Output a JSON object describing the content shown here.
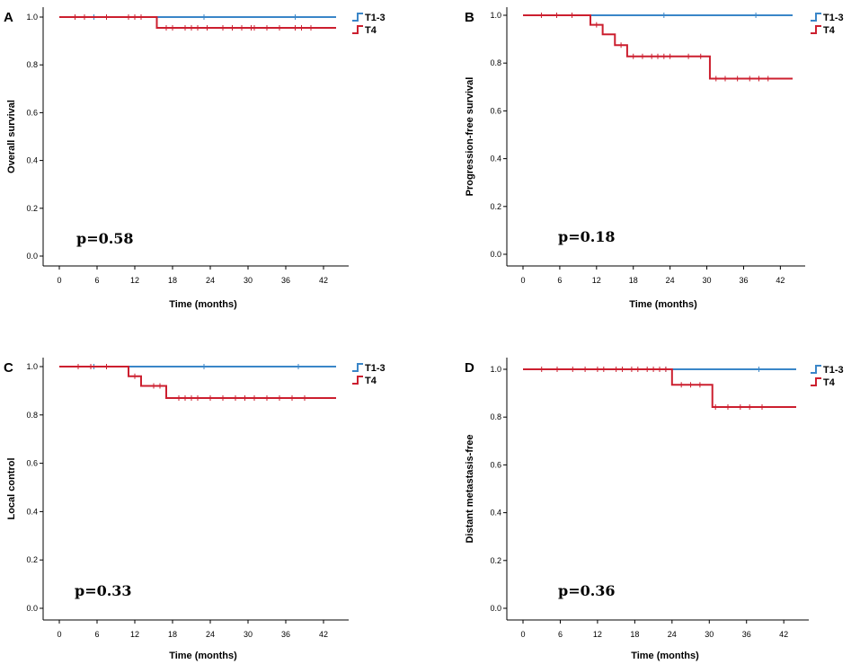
{
  "chart_data": [
    {
      "type": "line",
      "panel": "A",
      "xlabel": "Time (months)",
      "ylabel": "Overall survival",
      "xlim": [
        0,
        44
      ],
      "ylim": [
        0,
        1.0
      ],
      "xticks": [
        0,
        6,
        12,
        18,
        24,
        30,
        36,
        42
      ],
      "yticks": [
        "0.0",
        "0.2",
        "0.4",
        "0.6",
        "0.8",
        "1.0"
      ],
      "pvalue": "p=0.58",
      "legend": [
        "T1-3",
        "T4"
      ],
      "series": [
        {
          "name": "T1-3",
          "color": "#3a86c8",
          "steps": [
            [
              0,
              1.0
            ],
            [
              44,
              1.0
            ]
          ],
          "censor": [
            5.5,
            23,
            37.5
          ]
        },
        {
          "name": "T4",
          "color": "#cc1f2f",
          "steps": [
            [
              0,
              1.0
            ],
            [
              15.5,
              0.955
            ],
            [
              44,
              0.955
            ]
          ],
          "censor": [
            2.5,
            4,
            7.5,
            11,
            12,
            13,
            17,
            18,
            20,
            21,
            22,
            23.5,
            26,
            27.5,
            29,
            30.5,
            31,
            33,
            35,
            37.5,
            38.5,
            40
          ]
        }
      ]
    },
    {
      "type": "line",
      "panel": "B",
      "xlabel": "Time (months)",
      "ylabel": "Progression-free survival",
      "xlim": [
        0,
        44
      ],
      "ylim": [
        0,
        1.0
      ],
      "xticks": [
        0,
        6,
        12,
        18,
        24,
        30,
        36,
        42
      ],
      "yticks": [
        "0.0",
        "0.2",
        "0.4",
        "0.6",
        "0.8",
        "1.0"
      ],
      "pvalue": "p=0.18",
      "legend": [
        "T1-3",
        "T4"
      ],
      "series": [
        {
          "name": "T1-3",
          "color": "#3a86c8",
          "steps": [
            [
              0,
              1.0
            ],
            [
              44,
              1.0
            ]
          ],
          "censor": [
            5.5,
            23,
            38
          ]
        },
        {
          "name": "T4",
          "color": "#cc1f2f",
          "steps": [
            [
              0,
              1.0
            ],
            [
              11,
              0.96
            ],
            [
              13,
              0.92
            ],
            [
              15,
              0.875
            ],
            [
              17,
              0.828
            ],
            [
              30.5,
              0.735
            ],
            [
              44,
              0.735
            ]
          ],
          "censor": [
            3,
            5.5,
            8,
            12,
            16,
            18,
            19.5,
            21,
            22,
            23,
            24,
            27,
            29,
            31.5,
            33,
            35,
            37,
            38.5,
            40
          ]
        }
      ]
    },
    {
      "type": "line",
      "panel": "C",
      "xlabel": "Time (months)",
      "ylabel": "Local control",
      "xlim": [
        0,
        44
      ],
      "ylim": [
        0,
        1.0
      ],
      "xticks": [
        0,
        6,
        12,
        18,
        24,
        30,
        36,
        42
      ],
      "yticks": [
        "0.0",
        "0.2",
        "0.4",
        "0.6",
        "0.8",
        "1.0"
      ],
      "pvalue": "p=0.33",
      "legend": [
        "T1-3",
        "T4"
      ],
      "series": [
        {
          "name": "T1-3",
          "color": "#3a86c8",
          "steps": [
            [
              0,
              1.0
            ],
            [
              44,
              1.0
            ]
          ],
          "censor": [
            5.5,
            23,
            38
          ]
        },
        {
          "name": "T4",
          "color": "#cc1f2f",
          "steps": [
            [
              0,
              1.0
            ],
            [
              11,
              0.96
            ],
            [
              13,
              0.92
            ],
            [
              17,
              0.87
            ],
            [
              44,
              0.87
            ]
          ],
          "censor": [
            3,
            5,
            7.5,
            12,
            15,
            16,
            19,
            20,
            21,
            22,
            24,
            26,
            28,
            29.5,
            31,
            33,
            35,
            37,
            39
          ]
        }
      ]
    },
    {
      "type": "line",
      "panel": "D",
      "xlabel": "Time (months)",
      "ylabel": "Distant metastasis-free",
      "xlim": [
        0,
        44
      ],
      "ylim": [
        0,
        1.0
      ],
      "xticks": [
        0,
        6,
        12,
        18,
        24,
        30,
        36,
        42
      ],
      "yticks": [
        "0.0",
        "0.2",
        "0.4",
        "0.6",
        "0.8",
        "1.0"
      ],
      "pvalue": "p=0.36",
      "legend": [
        "T1-3",
        "T4"
      ],
      "series": [
        {
          "name": "T1-3",
          "color": "#3a86c8",
          "steps": [
            [
              0,
              1.0
            ],
            [
              44,
              1.0
            ]
          ],
          "censor": [
            5.5,
            23,
            38
          ]
        },
        {
          "name": "T4",
          "color": "#cc1f2f",
          "steps": [
            [
              0,
              1.0
            ],
            [
              24,
              0.935
            ],
            [
              30.5,
              0.842
            ],
            [
              44,
              0.842
            ]
          ],
          "censor": [
            3,
            5.5,
            8,
            10,
            12,
            13,
            15,
            16,
            17.5,
            18.5,
            20,
            21,
            22,
            23,
            25.5,
            27,
            28.5,
            31,
            33,
            35,
            36.5,
            38.5
          ]
        }
      ]
    }
  ]
}
